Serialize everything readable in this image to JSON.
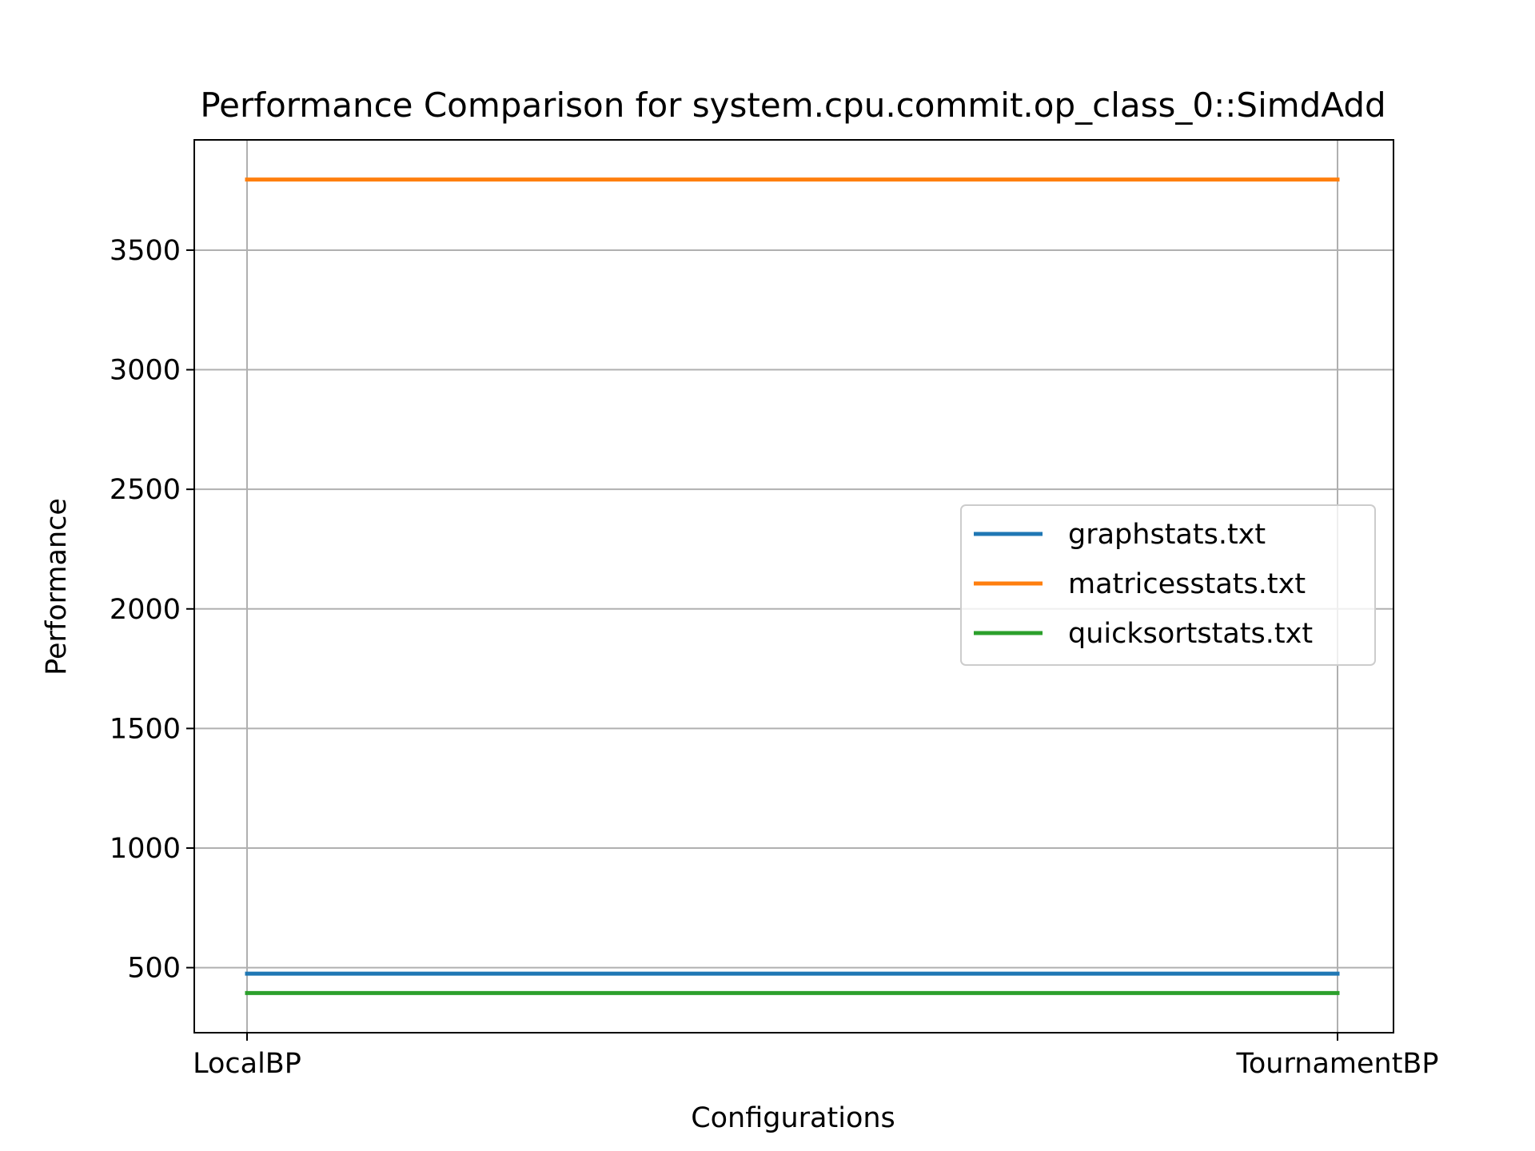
{
  "chart_data": {
    "type": "line",
    "title": "Performance Comparison for system.cpu.commit.op_class_0::SimdAdd",
    "xlabel": "Configurations",
    "ylabel": "Performance",
    "categories": [
      "LocalBP",
      "TournamentBP"
    ],
    "series": [
      {
        "name": "graphstats.txt",
        "color": "#1f77b4",
        "values": [
          475,
          475
        ]
      },
      {
        "name": "matricesstats.txt",
        "color": "#ff7f0e",
        "values": [
          3795,
          3795
        ]
      },
      {
        "name": "quicksortstats.txt",
        "color": "#2ca02c",
        "values": [
          394,
          394
        ]
      }
    ],
    "yticks": [
      500,
      1000,
      1500,
      2000,
      2500,
      3000,
      3500
    ],
    "ylim": [
      228,
      3961
    ],
    "grid": true,
    "legend_position": "center-right"
  }
}
